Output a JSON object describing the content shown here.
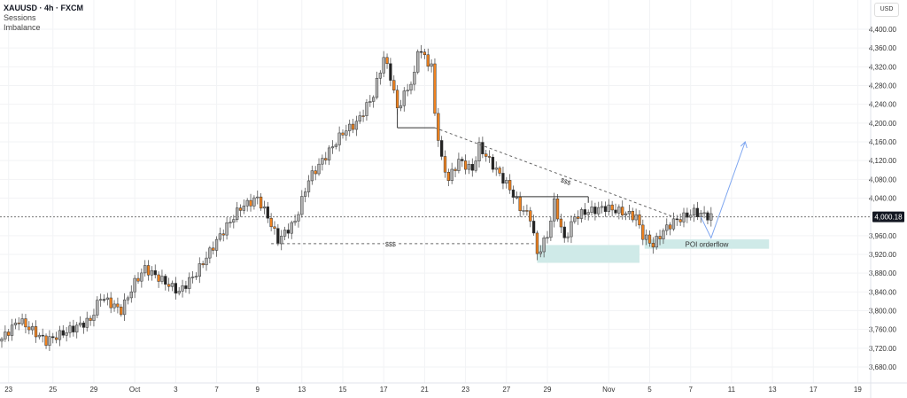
{
  "legend": {
    "symbol": "XAUUSD · 4h · FXCM",
    "indicators": [
      "Sessions",
      "Imbalance"
    ]
  },
  "currency_button": "USD",
  "chart_data": {
    "type": "candlestick",
    "title": "XAUUSD · 4h · FXCM",
    "ylim": [
      3650,
      4420
    ],
    "y_ticks": [
      4400,
      4360,
      4320,
      4280,
      4240,
      4200,
      4160,
      4120,
      4080,
      4040,
      3960,
      3920,
      3880,
      3840,
      3800,
      3760,
      3720,
      3680
    ],
    "y_tick_labels": [
      "4,400.00",
      "4,360.00",
      "4,320.00",
      "4,280.00",
      "4,240.00",
      "4,200.00",
      "4,160.00",
      "4,120.00",
      "4,080.00",
      "4,040.00",
      "3,960.00",
      "3,920.00",
      "3,880.00",
      "3,840.00",
      "3,800.00",
      "3,760.00",
      "3,720.00",
      "3,680.00"
    ],
    "x_tick_labels": [
      {
        "bar": 2,
        "label": "23"
      },
      {
        "bar": 15,
        "label": "25"
      },
      {
        "bar": 27,
        "label": "29"
      },
      {
        "bar": 39,
        "label": "Oct"
      },
      {
        "bar": 51,
        "label": "3"
      },
      {
        "bar": 63,
        "label": "7"
      },
      {
        "bar": 75,
        "label": "9"
      },
      {
        "bar": 88,
        "label": "13"
      },
      {
        "bar": 100,
        "label": "15"
      },
      {
        "bar": 112,
        "label": "17"
      },
      {
        "bar": 124,
        "label": "21"
      },
      {
        "bar": 136,
        "label": "23"
      },
      {
        "bar": 148,
        "label": "27"
      },
      {
        "bar": 160,
        "label": "29"
      },
      {
        "bar": 178,
        "label": "Nov"
      },
      {
        "bar": 190,
        "label": "5"
      },
      {
        "bar": 202,
        "label": "7"
      },
      {
        "bar": 214,
        "label": "11"
      },
      {
        "bar": 226,
        "label": "13"
      },
      {
        "bar": 238,
        "label": "17"
      },
      {
        "bar": 251,
        "label": "19"
      }
    ],
    "last_price": 4000.18,
    "last_price_label": "4,000.18",
    "approx_close_path": [
      [
        0,
        3740
      ],
      [
        5,
        3780
      ],
      [
        13,
        3735
      ],
      [
        26,
        3780
      ],
      [
        29,
        3830
      ],
      [
        35,
        3800
      ],
      [
        39,
        3860
      ],
      [
        42,
        3890
      ],
      [
        48,
        3860
      ],
      [
        52,
        3840
      ],
      [
        57,
        3880
      ],
      [
        64,
        3960
      ],
      [
        70,
        4020
      ],
      [
        75,
        4040
      ],
      [
        78,
        4000
      ],
      [
        81,
        3950
      ],
      [
        86,
        3990
      ],
      [
        90,
        4080
      ],
      [
        96,
        4140
      ],
      [
        100,
        4180
      ],
      [
        104,
        4200
      ],
      [
        109,
        4260
      ],
      [
        112,
        4340
      ],
      [
        114,
        4300
      ],
      [
        116,
        4230
      ],
      [
        118,
        4260
      ],
      [
        121,
        4300
      ],
      [
        122,
        4360
      ],
      [
        126,
        4320
      ],
      [
        127,
        4220
      ],
      [
        129,
        4120
      ],
      [
        131,
        4080
      ],
      [
        134,
        4120
      ],
      [
        138,
        4100
      ],
      [
        140,
        4150
      ],
      [
        144,
        4110
      ],
      [
        149,
        4060
      ],
      [
        152,
        4020
      ],
      [
        155,
        4000
      ],
      [
        157,
        3920
      ],
      [
        160,
        3960
      ],
      [
        162,
        4030
      ],
      [
        165,
        3950
      ],
      [
        168,
        4000
      ],
      [
        171,
        4010
      ],
      [
        177,
        4020
      ],
      [
        182,
        4010
      ],
      [
        186,
        4000
      ],
      [
        188,
        3960
      ],
      [
        191,
        3940
      ],
      [
        194,
        3970
      ],
      [
        197,
        3990
      ],
      [
        203,
        4010
      ],
      [
        208,
        4000
      ]
    ],
    "annotations": {
      "liquidity_label_1": "$$$",
      "liquidity_label_2": "$$$",
      "zone_label": "POI orderflow",
      "ssl_level": 3943,
      "high_level": 4190,
      "mid_level": 4043,
      "zone_1": [
        3902,
        3940
      ],
      "zone_2": [
        3932,
        3952
      ],
      "projection": [
        [
          205,
          4000
        ],
        [
          208,
          3955
        ],
        [
          218,
          4160
        ]
      ]
    },
    "colors": {
      "bear": "#f0821e",
      "bull": "#b2b2b2",
      "zone": "#cfeae8",
      "projection": "#7ea6f0"
    }
  }
}
